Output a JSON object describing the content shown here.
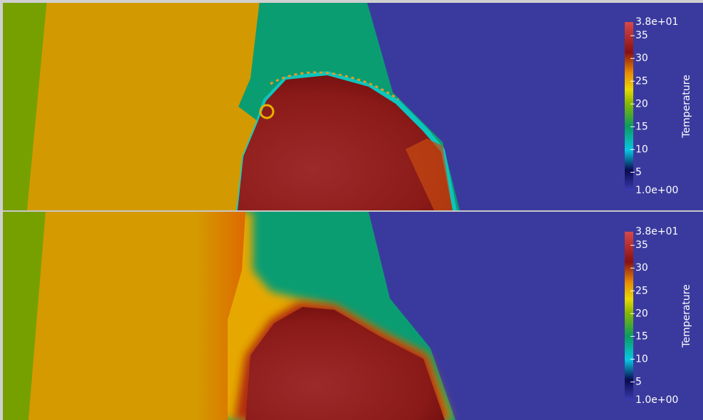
{
  "panels": [
    {
      "colorbar": {
        "title": "Temperature",
        "max": {
          "value": 38,
          "label": "3.8e+01"
        },
        "min": {
          "value": 1,
          "label": "1.0e+00"
        },
        "ticks": [
          35,
          30,
          25,
          20,
          15,
          10,
          5
        ]
      }
    },
    {
      "colorbar": {
        "title": "Temperature",
        "max": {
          "value": 38,
          "label": "3.8e+01"
        },
        "min": {
          "value": 1,
          "label": "1.0e+00"
        },
        "ticks": [
          35,
          30,
          25,
          20,
          15,
          10,
          5
        ]
      }
    }
  ]
}
